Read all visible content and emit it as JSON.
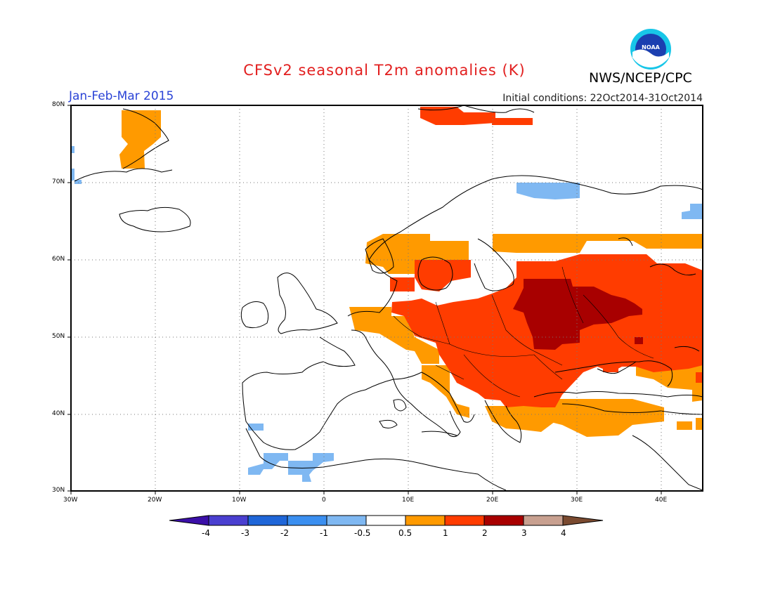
{
  "header": {
    "title": "CFSv2 seasonal T2m anomalies (K)",
    "season": "Jan-Feb-Mar 2015",
    "initial_conditions": "Initial conditions: 22Oct2014-31Oct2014",
    "agency": "NWS/NCEP/CPC",
    "logo_text": "NOAA"
  },
  "map": {
    "lon_range": [
      -30,
      45
    ],
    "lat_range": [
      30,
      80
    ],
    "lat_labels": [
      "80N",
      "70N",
      "60N",
      "50N",
      "40N",
      "30N"
    ],
    "lon_labels": [
      "30W",
      "20W",
      "10W",
      "0",
      "10E",
      "20E",
      "30E",
      "40E"
    ],
    "gridlines": true
  },
  "colorbar": {
    "labels": [
      "-4",
      "-3",
      "-2",
      "-1",
      "-0.5",
      "0.5",
      "1",
      "2",
      "3",
      "4"
    ],
    "colors": [
      "#3b0fa8",
      "#4a3fd0",
      "#1f66d8",
      "#3b8ff0",
      "#7fb8f2",
      "#ffffff",
      "#ff9a00",
      "#ff3c00",
      "#a80000",
      "#c8a090",
      "#7a4a30"
    ]
  },
  "anomaly_colors": {
    "weak_warm": "#ff9a00",
    "warm": "#ff3c00",
    "strong_warm": "#a80000",
    "weak_cool": "#7fb8f2"
  }
}
